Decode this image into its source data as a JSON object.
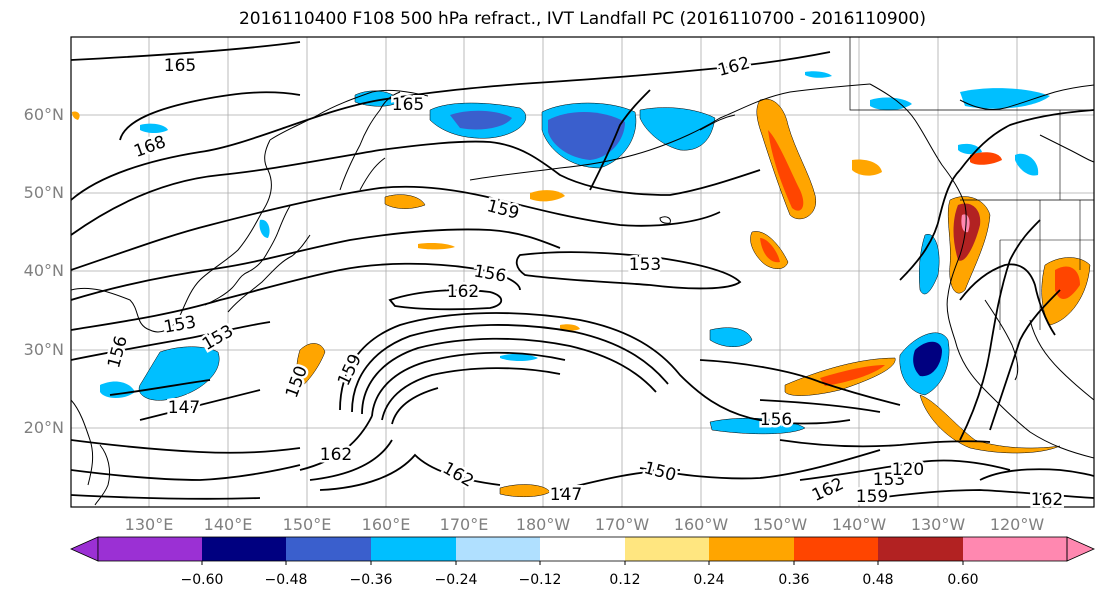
{
  "title": "2016110400 F108 500 hPa refract., IVT Landfall PC (2016110700 - 2016110900)",
  "lat_labels": [
    "60°N",
    "50°N",
    "40°N",
    "30°N",
    "20°N"
  ],
  "lon_labels": [
    "130°E",
    "140°E",
    "150°E",
    "160°E",
    "170°E",
    "180°W",
    "170°W",
    "160°W",
    "150°W",
    "140°W",
    "130°W",
    "120°W"
  ],
  "contour_labels": [
    "165",
    "162",
    "165",
    "168",
    "159",
    "156",
    "153",
    "162",
    "153",
    "156",
    "153",
    "150",
    "159",
    "147",
    "162",
    "162",
    "147",
    "150",
    "156",
    "162",
    "159",
    "153",
    "120",
    "162"
  ],
  "colorbar": {
    "tick_labels": [
      "−0.60",
      "−0.48",
      "−0.36",
      "−0.24",
      "−0.12",
      "0.12",
      "0.24",
      "0.36",
      "0.48",
      "0.60"
    ],
    "colors": [
      "#9b30d4",
      "#000080",
      "#3a5fcd",
      "#00bfff",
      "#b0e0ff",
      "#ffffff",
      "#ffe680",
      "#ffa500",
      "#ff4500",
      "#b22222",
      "#ff88b0"
    ]
  }
}
